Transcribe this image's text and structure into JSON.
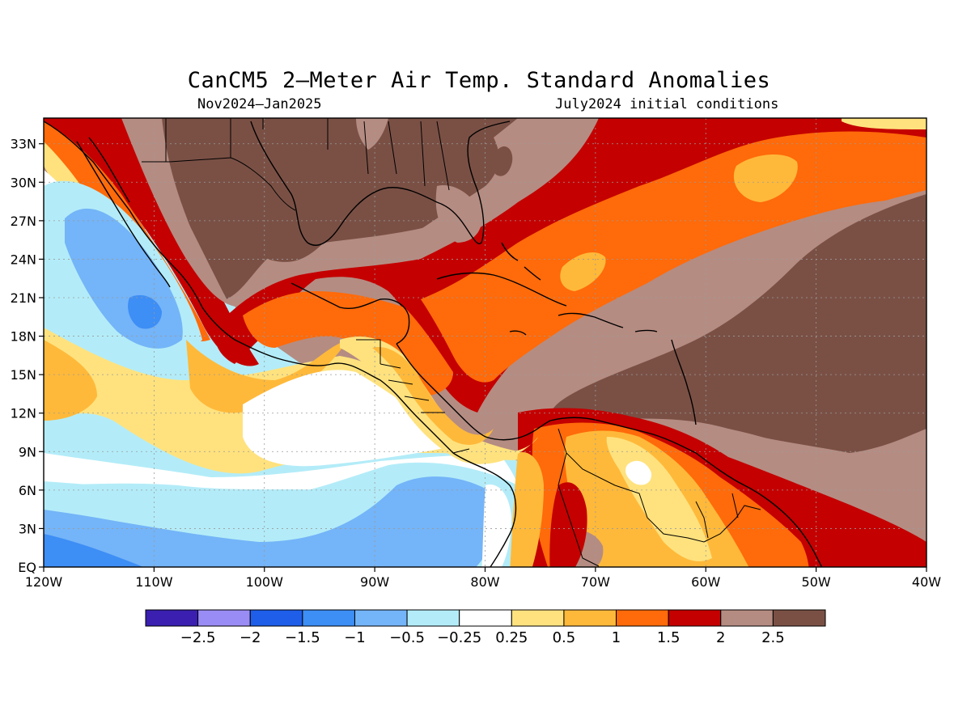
{
  "title": "CanCM5 2–Meter Air Temp. Standard Anomalies",
  "subtitle_left": "Nov2024–Jan2025",
  "subtitle_right": "July2024 initial conditions",
  "map": {
    "lon_range": [
      -120,
      -40
    ],
    "lat_range": [
      0,
      35
    ],
    "lat_ticks": [
      {
        "value": 33,
        "label": "33N"
      },
      {
        "value": 30,
        "label": "30N"
      },
      {
        "value": 27,
        "label": "27N"
      },
      {
        "value": 24,
        "label": "24N"
      },
      {
        "value": 21,
        "label": "21N"
      },
      {
        "value": 18,
        "label": "18N"
      },
      {
        "value": 15,
        "label": "15N"
      },
      {
        "value": 12,
        "label": "12N"
      },
      {
        "value": 9,
        "label": "9N"
      },
      {
        "value": 6,
        "label": "6N"
      },
      {
        "value": 3,
        "label": "3N"
      },
      {
        "value": 0,
        "label": "EQ"
      }
    ],
    "lon_ticks": [
      {
        "value": -120,
        "label": "120W"
      },
      {
        "value": -110,
        "label": "110W"
      },
      {
        "value": -100,
        "label": "100W"
      },
      {
        "value": -90,
        "label": "90W"
      },
      {
        "value": -80,
        "label": "80W"
      },
      {
        "value": -70,
        "label": "70W"
      },
      {
        "value": -60,
        "label": "60W"
      },
      {
        "value": -50,
        "label": "50W"
      },
      {
        "value": -40,
        "label": "40W"
      }
    ],
    "grid": true
  },
  "legend": {
    "colors": [
      "#3a1fb0",
      "#9a8cf5",
      "#1f5ee8",
      "#3d8ef5",
      "#74b4f8",
      "#b3ecf8",
      "#ffffff",
      "#ffe27e",
      "#ffb93a",
      "#ff6a0a",
      "#c40000",
      "#b58c82",
      "#7a5045"
    ],
    "labels": [
      "−2.5",
      "−2",
      "−1.5",
      "−1",
      "−0.5",
      "−0.25",
      "0.25",
      "0.5",
      "1",
      "1.5",
      "2",
      "2.5"
    ]
  }
}
